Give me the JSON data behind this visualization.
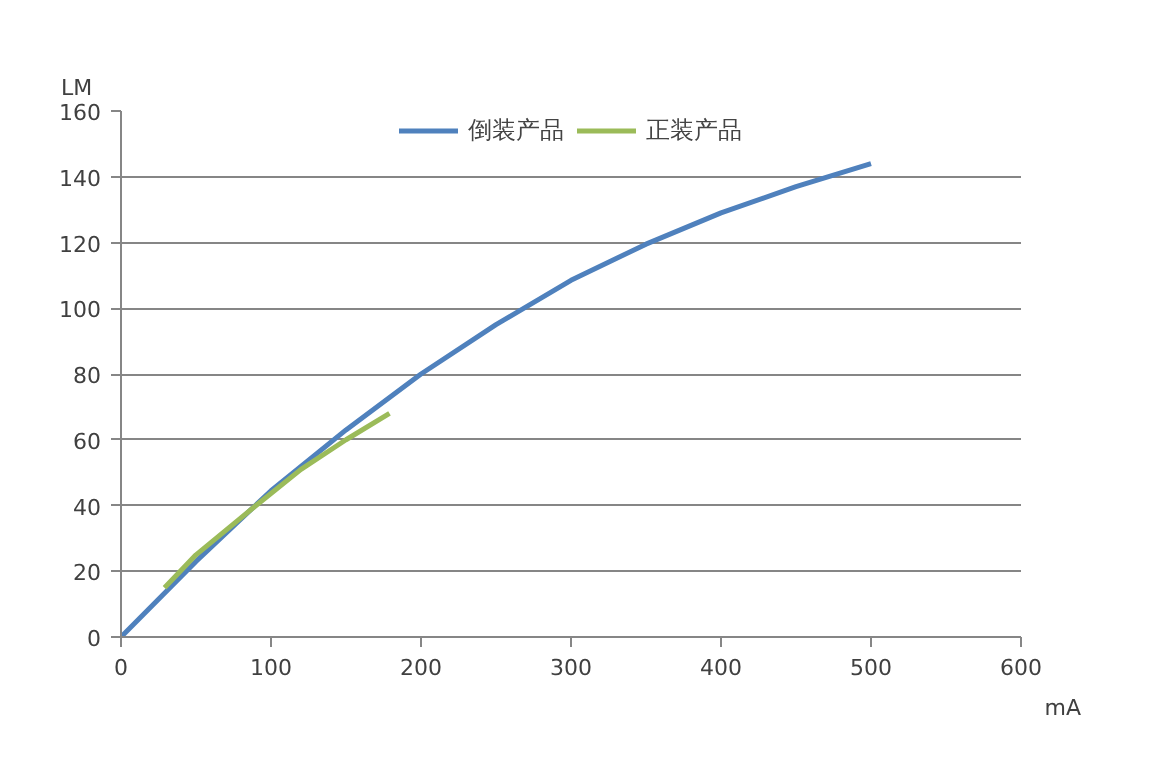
{
  "chart_data": {
    "type": "line",
    "xlabel": "mA",
    "ylabel": "LM",
    "xlim": [
      0,
      600
    ],
    "xticks": [
      0,
      100,
      200,
      300,
      400,
      500,
      600
    ],
    "ylim": [
      0,
      160
    ],
    "yticks": [
      0,
      20,
      40,
      60,
      80,
      100,
      120,
      140,
      160
    ],
    "grid": "y",
    "legend": "top",
    "marker": "none",
    "line_style": "solid",
    "series": [
      {
        "name": "倒装产品",
        "color": "#4f81bd",
        "x": [
          0,
          50,
          100,
          150,
          200,
          250,
          300,
          350,
          400,
          450,
          500
        ],
        "values": [
          0,
          23,
          44.5,
          63,
          80,
          95,
          108.5,
          119.5,
          129,
          137,
          144
        ]
      },
      {
        "name": "正装产品",
        "color": "#9bbb59",
        "x": [
          29,
          50,
          90,
          120,
          150,
          179
        ],
        "values": [
          15,
          25,
          40,
          51,
          60,
          68
        ]
      }
    ]
  }
}
